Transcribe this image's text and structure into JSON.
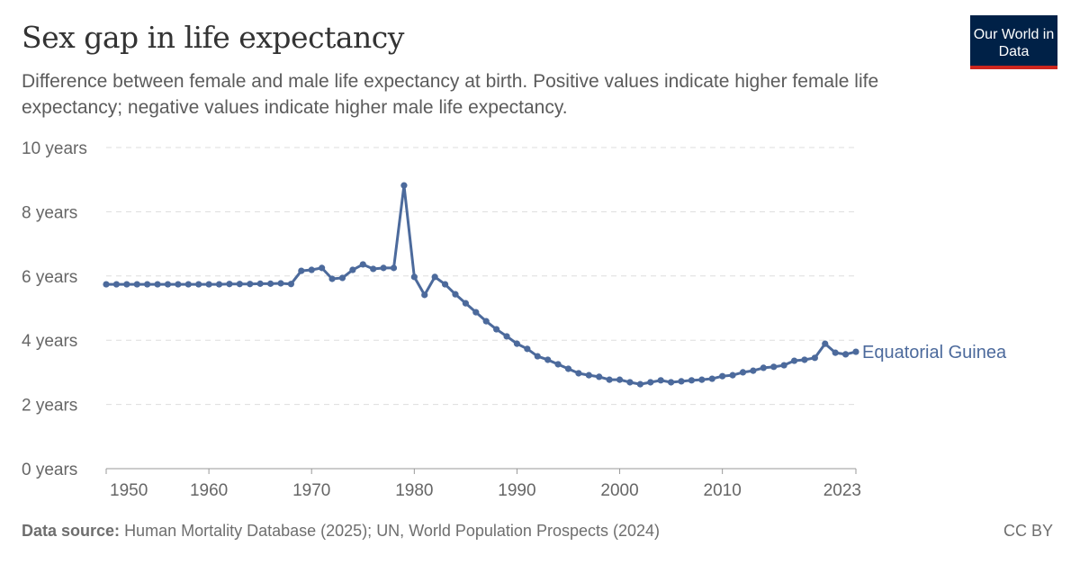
{
  "header": {
    "title": "Sex gap in life expectancy",
    "subtitle": "Difference between female and male life expectancy at birth. Positive values indicate higher female life expectancy; negative values indicate higher male life expectancy.",
    "logo": "Our World in Data"
  },
  "footer": {
    "source_label": "Data source:",
    "source": "Human Mortality Database (2025); UN, World Population Prospects (2024)",
    "license": "CC BY"
  },
  "chart_data": {
    "type": "line",
    "title": "Sex gap in life expectancy",
    "xlabel": "",
    "ylabel": "",
    "ylim": [
      0,
      10
    ],
    "xlim": [
      1950,
      2023
    ],
    "grid": "horizontal dashed",
    "y_ticks": [
      {
        "v": 0,
        "label": "0 years"
      },
      {
        "v": 2,
        "label": "2 years"
      },
      {
        "v": 4,
        "label": "4 years"
      },
      {
        "v": 6,
        "label": "6 years"
      },
      {
        "v": 8,
        "label": "8 years"
      },
      {
        "v": 10,
        "label": "10 years"
      }
    ],
    "x_ticks": [
      {
        "v": 1950,
        "label": "1950"
      },
      {
        "v": 1960,
        "label": "1960"
      },
      {
        "v": 1970,
        "label": "1970"
      },
      {
        "v": 1980,
        "label": "1980"
      },
      {
        "v": 1990,
        "label": "1990"
      },
      {
        "v": 2000,
        "label": "2000"
      },
      {
        "v": 2010,
        "label": "2010"
      },
      {
        "v": 2023,
        "label": "2023"
      }
    ],
    "series": [
      {
        "name": "Equatorial Guinea",
        "color": "#4c6a9c",
        "x": [
          1950,
          1951,
          1952,
          1953,
          1954,
          1955,
          1956,
          1957,
          1958,
          1959,
          1960,
          1961,
          1962,
          1963,
          1964,
          1965,
          1966,
          1967,
          1968,
          1969,
          1970,
          1971,
          1972,
          1973,
          1974,
          1975,
          1976,
          1977,
          1978,
          1979,
          1980,
          1981,
          1982,
          1983,
          1984,
          1985,
          1986,
          1987,
          1988,
          1989,
          1990,
          1991,
          1992,
          1993,
          1994,
          1995,
          1996,
          1997,
          1998,
          1999,
          2000,
          2001,
          2002,
          2003,
          2004,
          2005,
          2006,
          2007,
          2008,
          2009,
          2010,
          2011,
          2012,
          2013,
          2014,
          2015,
          2016,
          2017,
          2018,
          2019,
          2020,
          2021,
          2022,
          2023
        ],
        "y": [
          5.74,
          5.74,
          5.74,
          5.74,
          5.74,
          5.74,
          5.74,
          5.74,
          5.74,
          5.74,
          5.74,
          5.74,
          5.75,
          5.75,
          5.75,
          5.76,
          5.76,
          5.77,
          5.75,
          6.16,
          6.19,
          6.25,
          5.91,
          5.94,
          6.19,
          6.36,
          6.22,
          6.25,
          6.25,
          8.82,
          5.97,
          5.41,
          5.97,
          5.74,
          5.43,
          5.15,
          4.87,
          4.59,
          4.34,
          4.12,
          3.89,
          3.73,
          3.5,
          3.39,
          3.25,
          3.11,
          2.97,
          2.91,
          2.86,
          2.77,
          2.77,
          2.69,
          2.63,
          2.69,
          2.75,
          2.69,
          2.72,
          2.75,
          2.77,
          2.8,
          2.88,
          2.91,
          3.0,
          3.05,
          3.14,
          3.17,
          3.22,
          3.36,
          3.39,
          3.45,
          3.89,
          3.61,
          3.56,
          3.64
        ]
      }
    ]
  }
}
